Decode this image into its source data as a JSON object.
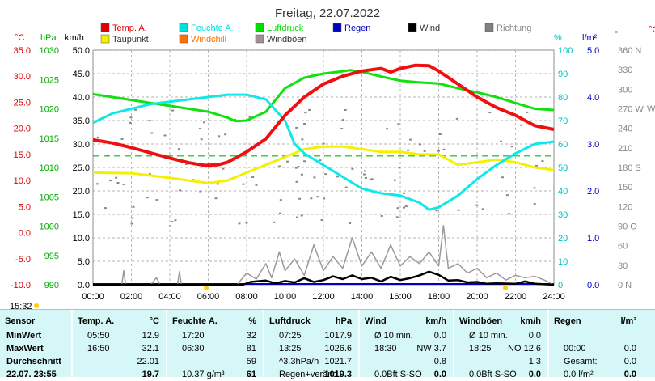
{
  "title": "Freitag, 22.07.2022",
  "legend": [
    {
      "label": "Temp. A.",
      "color": "#e00000"
    },
    {
      "label": "Feuchte A.",
      "color": "#00e0e0"
    },
    {
      "label": "Luftdruck",
      "color": "#00e000"
    },
    {
      "label": "Regen",
      "color": "#0000c0"
    },
    {
      "label": "Wind",
      "color": "#000000"
    },
    {
      "label": "Richtung",
      "color": "#808080"
    },
    {
      "label": "Taupunkt",
      "color": "#f0f000"
    },
    {
      "label": "Windchill",
      "color": "#ff7000"
    },
    {
      "label": "Windböen",
      "color": "#a09090"
    }
  ],
  "axes": {
    "temp_unit": "°C",
    "temp_ticks": [
      "35.0",
      "30.0",
      "25.0",
      "20.0",
      "15.0",
      "10.0",
      "5.0",
      "0.0",
      "-5.0",
      "-10.0"
    ],
    "press_unit": "hPa",
    "press_ticks": [
      "1030",
      "1025",
      "1020",
      "1015",
      "1010",
      "1005",
      "1000",
      "995",
      "990"
    ],
    "wind_unit": "km/h",
    "wind_ticks": [
      "50.0",
      "45.0",
      "40.0",
      "35.0",
      "30.0",
      "25.0",
      "20.0",
      "15.0",
      "10.0",
      "5.0",
      "0.0"
    ],
    "hum_unit": "%",
    "hum_ticks": [
      "100",
      "90",
      "80",
      "70",
      "60",
      "50",
      "40",
      "30",
      "20",
      "10",
      "0"
    ],
    "rain_unit": "l/m²",
    "rain_ticks": [
      "5.0",
      "4.0",
      "3.0",
      "2.0",
      "1.0",
      "0.0"
    ],
    "dir_unit": "°",
    "dir_ticks": [
      "360 N",
      "330",
      "300",
      "270 W",
      "240",
      "210",
      "180 S",
      "150",
      "120",
      "90 O",
      "60",
      "30",
      "0   N"
    ],
    "time_ticks": [
      "00:00",
      "02:00",
      "04:00",
      "06:00",
      "08:00",
      "10:00",
      "12:00",
      "14:00",
      "16:00",
      "18:00",
      "20:00",
      "22:00",
      "24:00"
    ],
    "right_partial": [
      "°",
      "°C",
      "W"
    ]
  },
  "footer_time": "15:32",
  "chart_data": {
    "type": "line",
    "x_unit": "hour",
    "x_range": [
      0,
      24
    ],
    "series": [
      {
        "name": "Temp. A.",
        "axis": "°C",
        "ylim": [
          -10,
          35
        ],
        "points": [
          [
            0,
            17.8
          ],
          [
            1,
            17.2
          ],
          [
            2,
            16.3
          ],
          [
            3,
            15.3
          ],
          [
            4,
            14.3
          ],
          [
            5,
            13.4
          ],
          [
            5.8,
            12.9
          ],
          [
            6.5,
            13.0
          ],
          [
            7,
            13.5
          ],
          [
            8,
            15.5
          ],
          [
            9,
            18.0
          ],
          [
            10,
            22.5
          ],
          [
            11,
            26.0
          ],
          [
            12,
            28.5
          ],
          [
            13,
            30.0
          ],
          [
            14,
            31.0
          ],
          [
            15,
            31.5
          ],
          [
            15.5,
            30.8
          ],
          [
            16,
            31.5
          ],
          [
            16.8,
            32.1
          ],
          [
            17.5,
            32.0
          ],
          [
            18,
            31.0
          ],
          [
            19,
            28.5
          ],
          [
            20,
            26.0
          ],
          [
            21,
            24.0
          ],
          [
            22,
            22.5
          ],
          [
            23,
            20.5
          ],
          [
            24,
            19.8
          ]
        ]
      },
      {
        "name": "Feuchte A.",
        "axis": "%",
        "ylim": [
          0,
          100
        ],
        "points": [
          [
            0,
            69
          ],
          [
            1,
            73
          ],
          [
            2,
            75
          ],
          [
            3,
            77
          ],
          [
            4,
            78
          ],
          [
            5,
            79
          ],
          [
            6,
            80
          ],
          [
            7,
            81
          ],
          [
            8,
            81
          ],
          [
            9,
            79
          ],
          [
            10,
            70
          ],
          [
            10.5,
            60
          ],
          [
            11,
            56
          ],
          [
            12,
            51
          ],
          [
            13,
            46
          ],
          [
            14,
            41
          ],
          [
            15,
            39
          ],
          [
            16,
            38
          ],
          [
            17,
            35
          ],
          [
            17.5,
            32
          ],
          [
            18,
            33
          ],
          [
            19,
            38
          ],
          [
            20,
            45
          ],
          [
            21,
            51
          ],
          [
            22,
            56
          ],
          [
            23,
            60
          ],
          [
            24,
            61
          ]
        ]
      },
      {
        "name": "Luftdruck",
        "axis": "hPa",
        "ylim": [
          990,
          1030
        ],
        "points": [
          [
            0,
            1022.5
          ],
          [
            1,
            1022
          ],
          [
            2,
            1021.5
          ],
          [
            3,
            1021
          ],
          [
            4,
            1020.5
          ],
          [
            5,
            1020
          ],
          [
            6,
            1019.5
          ],
          [
            7,
            1018.5
          ],
          [
            7.4,
            1017.9
          ],
          [
            8,
            1018
          ],
          [
            9,
            1019.5
          ],
          [
            10,
            1023.5
          ],
          [
            11,
            1025.3
          ],
          [
            12,
            1026
          ],
          [
            13,
            1026.4
          ],
          [
            13.4,
            1026.6
          ],
          [
            14,
            1026.3
          ],
          [
            15,
            1025.5
          ],
          [
            16,
            1024.8
          ],
          [
            17,
            1024.5
          ],
          [
            18,
            1024.3
          ],
          [
            19,
            1023.5
          ],
          [
            20,
            1022.8
          ],
          [
            21,
            1022
          ],
          [
            22,
            1021
          ],
          [
            23,
            1020
          ],
          [
            24,
            1019.8
          ]
        ]
      },
      {
        "name": "Taupunkt",
        "axis": "°C",
        "ylim": [
          -10,
          35
        ],
        "points": [
          [
            0,
            11.5
          ],
          [
            2,
            11.4
          ],
          [
            4,
            10.5
          ],
          [
            6,
            9.5
          ],
          [
            7,
            10.0
          ],
          [
            8,
            11.5
          ],
          [
            9,
            13.0
          ],
          [
            10,
            14.5
          ],
          [
            11,
            16.0
          ],
          [
            12,
            16.5
          ],
          [
            13,
            16.5
          ],
          [
            14,
            16.0
          ],
          [
            15,
            15.5
          ],
          [
            16,
            15.5
          ],
          [
            17,
            15.0
          ],
          [
            18,
            15.0
          ],
          [
            19,
            13.0
          ],
          [
            20,
            13.5
          ],
          [
            21,
            14.0
          ],
          [
            22,
            13.5
          ],
          [
            23,
            12.5
          ],
          [
            24,
            12.0
          ]
        ]
      },
      {
        "name": "Wind",
        "axis": "km/h",
        "ylim": [
          0,
          50
        ],
        "points": [
          [
            0,
            0
          ],
          [
            7.8,
            0
          ],
          [
            8.2,
            0.6
          ],
          [
            9,
            0.9
          ],
          [
            9.5,
            0.3
          ],
          [
            10,
            0.8
          ],
          [
            10.5,
            0.5
          ],
          [
            11,
            1.4
          ],
          [
            11.5,
            0.6
          ],
          [
            12,
            1.0
          ],
          [
            12.5,
            1.8
          ],
          [
            13,
            1.2
          ],
          [
            13.5,
            2.0
          ],
          [
            14,
            1.2
          ],
          [
            14.5,
            1.5
          ],
          [
            15,
            0.7
          ],
          [
            15.5,
            1.7
          ],
          [
            16,
            1.0
          ],
          [
            16.5,
            1.4
          ],
          [
            17,
            2.0
          ],
          [
            17.5,
            2.8
          ],
          [
            18,
            2.1
          ],
          [
            18.5,
            0.9
          ],
          [
            19,
            1.0
          ],
          [
            19.5,
            0.5
          ],
          [
            20,
            0.6
          ],
          [
            20.5,
            0.2
          ],
          [
            21,
            0.3
          ],
          [
            22,
            0.2
          ],
          [
            22.5,
            0.7
          ],
          [
            23,
            0.2
          ],
          [
            24,
            0
          ]
        ]
      },
      {
        "name": "Windböen",
        "axis": "km/h",
        "ylim": [
          0,
          50
        ],
        "points": [
          [
            0,
            0
          ],
          [
            1.5,
            0
          ],
          [
            1.6,
            3.0
          ],
          [
            1.7,
            0
          ],
          [
            3,
            0
          ],
          [
            3.3,
            1.5
          ],
          [
            3.5,
            0
          ],
          [
            4.4,
            0
          ],
          [
            4.5,
            2.8
          ],
          [
            4.6,
            0
          ],
          [
            7.5,
            0
          ],
          [
            8,
            2.5
          ],
          [
            8.5,
            1.2
          ],
          [
            9,
            4.5
          ],
          [
            9.3,
            1.5
          ],
          [
            9.7,
            7.0
          ],
          [
            10,
            3.0
          ],
          [
            10.5,
            5.5
          ],
          [
            11,
            2.0
          ],
          [
            11.5,
            8.5
          ],
          [
            12,
            3.0
          ],
          [
            12.5,
            6.0
          ],
          [
            13,
            3.5
          ],
          [
            13.5,
            10.0
          ],
          [
            14,
            4.0
          ],
          [
            14.5,
            7.0
          ],
          [
            15,
            3.5
          ],
          [
            15.5,
            8.5
          ],
          [
            16,
            4.0
          ],
          [
            16.5,
            6.0
          ],
          [
            17,
            4.5
          ],
          [
            17.5,
            7.0
          ],
          [
            18,
            4.0
          ],
          [
            18.25,
            12.6
          ],
          [
            18.5,
            3.5
          ],
          [
            19,
            4.5
          ],
          [
            19.5,
            2.5
          ],
          [
            20,
            3.5
          ],
          [
            20.5,
            1.5
          ],
          [
            21,
            2.5
          ],
          [
            21.5,
            1.0
          ],
          [
            22,
            2.0
          ],
          [
            22.5,
            1.5
          ],
          [
            23,
            1.8
          ],
          [
            23.5,
            1.0
          ],
          [
            24,
            0
          ]
        ]
      }
    ],
    "reference_line": {
      "name": "Luftdruck dashed",
      "axis": "°C",
      "value": 14.7,
      "color": "#00c000"
    }
  },
  "stats": {
    "columns": [
      {
        "h1": "Sensor",
        "h2": "",
        "rows": [
          [
            "MinWert",
            ""
          ],
          [
            "MaxWert",
            ""
          ],
          [
            "Durchschnitt",
            ""
          ],
          [
            "22.07. 23:55",
            ""
          ]
        ]
      },
      {
        "h1": "Temp. A.",
        "h2": "°C",
        "rows": [
          [
            "05:50",
            "12.9"
          ],
          [
            "16:50",
            "32.1"
          ],
          [
            "",
            "22.01"
          ],
          [
            "",
            "19.7"
          ]
        ]
      },
      {
        "h1": "Feuchte A.",
        "h2": "%",
        "rows": [
          [
            "17:20",
            "32"
          ],
          [
            "06:30",
            "81"
          ],
          [
            "",
            "59"
          ],
          [
            "10.37 g/m³",
            "61"
          ]
        ]
      },
      {
        "h1": "Luftdruck",
        "h2": "hPa",
        "rows": [
          [
            "07:25",
            "1017.9"
          ],
          [
            "13:25",
            "1026.6"
          ],
          [
            "^3.3hPa/h",
            "1021.7"
          ],
          [
            "Regen+veränd",
            "1019.3"
          ]
        ]
      },
      {
        "h1": "Wind",
        "h2": "km/h",
        "rows": [
          [
            "Ø 10 min.",
            "0.0"
          ],
          [
            "18:30",
            "NW 3.7"
          ],
          [
            "",
            "0.8"
          ],
          [
            "0.0Bft S-SO",
            "0.0"
          ]
        ]
      },
      {
        "h1": "Windböen",
        "h2": "km/h",
        "rows": [
          [
            "Ø 10 min.",
            "0.0"
          ],
          [
            "18:25",
            "NO 12.6"
          ],
          [
            "",
            "1.3"
          ],
          [
            "0.0Bft S-SO",
            "0.0"
          ]
        ]
      },
      {
        "h1": "Regen",
        "h2": "l/m²",
        "rows": [
          [
            "",
            ""
          ],
          [
            "00:00",
            "0.0"
          ],
          [
            "Gesamt:",
            "0.0"
          ],
          [
            "0.0 l/m²",
            "0.0"
          ]
        ]
      }
    ]
  }
}
